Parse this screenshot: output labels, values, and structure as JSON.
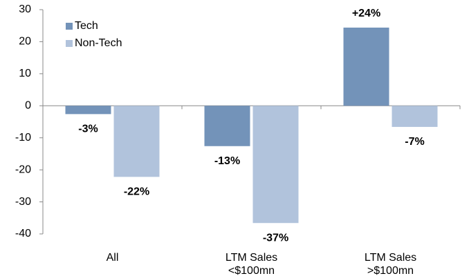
{
  "chart_data": {
    "type": "bar",
    "categories": [
      "All",
      "LTM Sales <$100mn",
      "LTM Sales >$100mn"
    ],
    "series": [
      {
        "name": "Tech",
        "color": "#7393b9",
        "values": [
          -2.6,
          -12.6,
          24.4
        ],
        "value_labels": [
          "-3%",
          "-13%",
          "+24%"
        ]
      },
      {
        "name": "Non-Tech",
        "color": "#b1c3dc",
        "values": [
          -22.2,
          -36.6,
          -6.6
        ],
        "value_labels": [
          "-22%",
          "-37%",
          "-7%"
        ]
      }
    ],
    "ylim": [
      -40,
      30
    ],
    "yticks": [
      -40,
      -30,
      -20,
      -10,
      0,
      10,
      20,
      30
    ],
    "grid": false,
    "legend": "upper left"
  }
}
